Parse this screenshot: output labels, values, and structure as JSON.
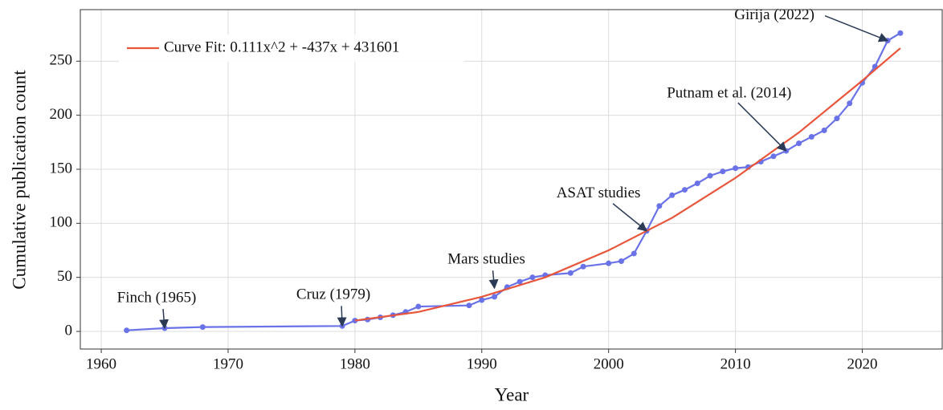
{
  "chart_data": {
    "type": "line",
    "xlabel": "Year",
    "ylabel": "Cumulative publication count",
    "xlim": [
      1958.35,
      2026.3
    ],
    "ylim": [
      -16.3,
      297.7
    ],
    "xticks": [
      1960,
      1970,
      1980,
      1990,
      2000,
      2010,
      2020
    ],
    "yticks": [
      0,
      50,
      100,
      150,
      200,
      250
    ],
    "grid": true,
    "legend": "upper left",
    "series": [
      {
        "color": "#6a72e8",
        "markers": true,
        "x": [
          1962,
          1965,
          1968,
          1979,
          1980,
          1981,
          1982,
          1983,
          1984,
          1985,
          1989,
          1990,
          1991,
          1992,
          1993,
          1994,
          1995,
          1997,
          1998,
          2000,
          2001,
          2002,
          2003,
          2004,
          2005,
          2006,
          2007,
          2008,
          2009,
          2010,
          2011,
          2012,
          2013,
          2014,
          2015,
          2016,
          2017,
          2018,
          2019,
          2020,
          2021,
          2022,
          2023
        ],
        "values": [
          1,
          3,
          4,
          5,
          10,
          11,
          13,
          15,
          18,
          23,
          24,
          29,
          32,
          41,
          46,
          50,
          52,
          54,
          60,
          63,
          65,
          72,
          93,
          116,
          126,
          131,
          137,
          144,
          148,
          151,
          152,
          157,
          162,
          167,
          174,
          180,
          186,
          197,
          211,
          230,
          245,
          269,
          276
        ]
      },
      {
        "name": "Curve Fit: 0.111x^2 + -437x + 431601",
        "color": "#e8553a",
        "markers": false,
        "x": [
          1980,
          1985,
          1990,
          1995,
          2000,
          2005,
          2010,
          2015,
          2020,
          2023
        ],
        "values": [
          10,
          18,
          32,
          50,
          75,
          105,
          142,
          184,
          232,
          262
        ]
      }
    ],
    "annotations": [
      {
        "text": "Finch (1965)",
        "x": 1965,
        "y": 3
      },
      {
        "text": "Cruz (1979)",
        "x": 1979,
        "y": 5
      },
      {
        "text": "Mars studies",
        "x": 1991,
        "y": 40
      },
      {
        "text": "ASAT studies",
        "x": 2003,
        "y": 93
      },
      {
        "text": "Putnam et al. (2014)",
        "x": 2014,
        "y": 167
      },
      {
        "text": "Girija (2022)",
        "x": 2022,
        "y": 269
      }
    ]
  }
}
